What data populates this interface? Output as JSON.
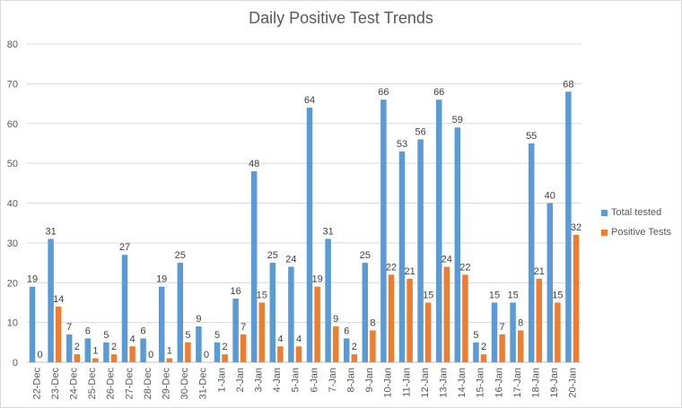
{
  "chart_data": {
    "type": "bar",
    "title": "Daily Positive Test Trends",
    "xlabel": "",
    "ylabel": "",
    "ylim": [
      0,
      80
    ],
    "yticks": [
      0,
      10,
      20,
      30,
      40,
      50,
      60,
      70,
      80
    ],
    "grid": true,
    "legend_position": "right",
    "categories": [
      "22-Dec",
      "23-Dec",
      "24-Dec",
      "25-Dec",
      "26-Dec",
      "27-Dec",
      "28-Dec",
      "29-Dec",
      "30-Dec",
      "31-Dec",
      "1-Jan",
      "2-Jan",
      "3-Jan",
      "4-Jan",
      "5-Jan",
      "6-Jan",
      "7-Jan",
      "8-Jan",
      "9-Jan",
      "10-Jan",
      "11-Jan",
      "12-Jan",
      "13-Jan",
      "14-Jan",
      "15-Jan",
      "16-Jan",
      "17-Jan",
      "18-Jan",
      "19-Jan",
      "20-Jan"
    ],
    "series": [
      {
        "name": "Total tested",
        "color": "#5b9bd5",
        "values": [
          19,
          31,
          7,
          6,
          5,
          27,
          6,
          19,
          25,
          9,
          5,
          16,
          48,
          25,
          24,
          64,
          31,
          6,
          25,
          66,
          53,
          56,
          66,
          59,
          5,
          15,
          15,
          55,
          40,
          68
        ]
      },
      {
        "name": "Positive Tests",
        "color": "#ed7d31",
        "values": [
          0,
          14,
          2,
          1,
          2,
          4,
          0,
          1,
          5,
          0,
          2,
          7,
          15,
          4,
          4,
          19,
          9,
          2,
          8,
          22,
          21,
          15,
          24,
          22,
          2,
          7,
          8,
          21,
          15,
          32
        ]
      }
    ]
  }
}
